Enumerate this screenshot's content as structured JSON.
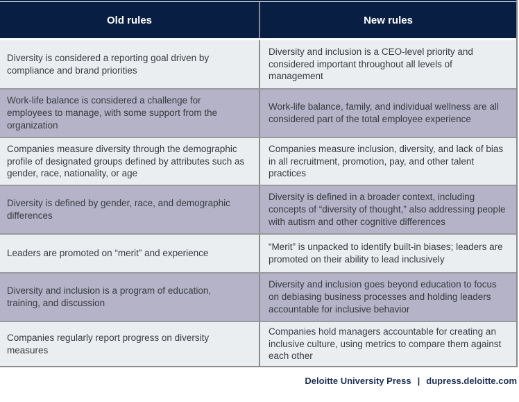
{
  "table": {
    "columns": [
      "Old rules",
      "New rules"
    ],
    "rows": [
      {
        "old": "Diversity is considered a reporting goal driven by compliance and brand priorities",
        "new": "Diversity and inclusion is a CEO-level priority and considered important throughout all levels of management"
      },
      {
        "old": "Work-life balance is considered a challenge for employees to manage, with some support from the organization",
        "new": "Work-life balance, family, and individual wellness are all considered part of the total employee experience"
      },
      {
        "old": "Companies measure diversity through the demographic profile of designated groups defined by attributes such as gender, race, nationality, or age",
        "new": "Companies measure inclusion, diversity, and lack of bias in all recruitment, promotion, pay, and other talent practices"
      },
      {
        "old": "Diversity is defined by gender, race, and demographic differences",
        "new": "Diversity is defined in a broader context, including concepts of “diversity of thought,” also addressing people with autism and other cognitive differences"
      },
      {
        "old": "Leaders are promoted on “merit” and experience",
        "new": "“Merit” is unpacked to identify built-in biases; leaders are promoted on their ability to lead inclusively"
      },
      {
        "old": "Diversity and inclusion is a program of education, training, and discussion",
        "new": "Diversity and inclusion goes beyond education to focus on debiasing business processes and holding leaders accountable for inclusive behavior"
      },
      {
        "old": "Companies regularly report progress on diversity measures",
        "new": "Companies hold managers accountable for creating an inclusive culture, using metrics to compare them against each other"
      }
    ]
  },
  "footer": {
    "source": "Deloitte University Press",
    "separator": "|",
    "site": "dupress.deloitte.com"
  },
  "colors": {
    "header_bg": "#081f43",
    "row_light": "#ebeef0",
    "row_lavender": "#b4b3c8",
    "divider_gray": "#8b8b8b",
    "body_text": "#383b40",
    "footer_text": "#1d3055"
  }
}
